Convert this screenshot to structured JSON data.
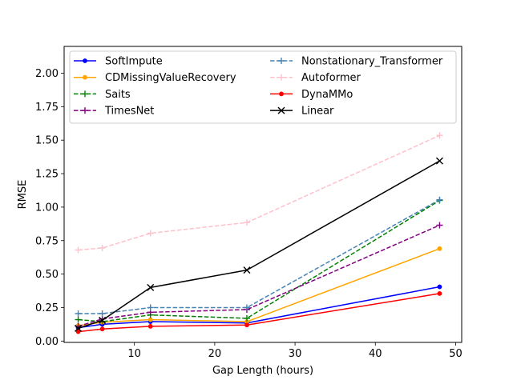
{
  "chart_data": {
    "type": "line",
    "title": "",
    "xlabel": "Gap Length (hours)",
    "ylabel": "RMSE",
    "xlim": [
      1.25,
      50.75
    ],
    "ylim": [
      -0.01,
      2.2
    ],
    "x": [
      3,
      6,
      12,
      24,
      48
    ],
    "xticks": [
      10,
      20,
      30,
      40,
      50
    ],
    "yticks": [
      0.0,
      0.25,
      0.5,
      0.75,
      1.0,
      1.25,
      1.5,
      1.75,
      2.0
    ],
    "xtick_labels": [
      "10",
      "20",
      "30",
      "40",
      "50"
    ],
    "ytick_labels": [
      "0.00",
      "0.25",
      "0.50",
      "0.75",
      "1.00",
      "1.25",
      "1.50",
      "1.75",
      "2.00"
    ],
    "grid": false,
    "legend_position": "top",
    "series": [
      {
        "name": "SoftImpute",
        "color": "#0000ff",
        "dash": "solid",
        "marker": "dot",
        "values": [
          0.1,
          0.125,
          0.145,
          0.135,
          0.405
        ]
      },
      {
        "name": "CDMissingValueRecovery",
        "color": "#ffa500",
        "dash": "solid",
        "marker": "dot",
        "values": [
          0.115,
          0.14,
          0.16,
          0.145,
          0.69
        ]
      },
      {
        "name": "Saits",
        "color": "#008000",
        "dash": "dashed",
        "marker": "plus",
        "values": [
          0.16,
          0.145,
          0.195,
          0.17,
          1.05
        ]
      },
      {
        "name": "TimesNet",
        "color": "#800080",
        "dash": "dashed",
        "marker": "plus",
        "values": [
          0.11,
          0.165,
          0.215,
          0.235,
          0.865
        ]
      },
      {
        "name": "Nonstationary_Transformer",
        "color": "#4682b4",
        "dash": "dashed",
        "marker": "plus",
        "values": [
          0.205,
          0.205,
          0.25,
          0.25,
          1.055
        ]
      },
      {
        "name": "Autoformer",
        "color": "#ffc0cb",
        "dash": "dashed",
        "marker": "plus",
        "values": [
          0.68,
          0.695,
          0.805,
          0.885,
          1.535
        ]
      },
      {
        "name": "DynaMMo",
        "color": "#ff0000",
        "dash": "solid",
        "marker": "dot",
        "values": [
          0.07,
          0.09,
          0.11,
          0.12,
          0.355
        ]
      },
      {
        "name": "Linear",
        "color": "#000000",
        "dash": "solid",
        "marker": "x",
        "values": [
          0.095,
          0.155,
          0.4,
          0.53,
          1.345
        ]
      }
    ]
  }
}
